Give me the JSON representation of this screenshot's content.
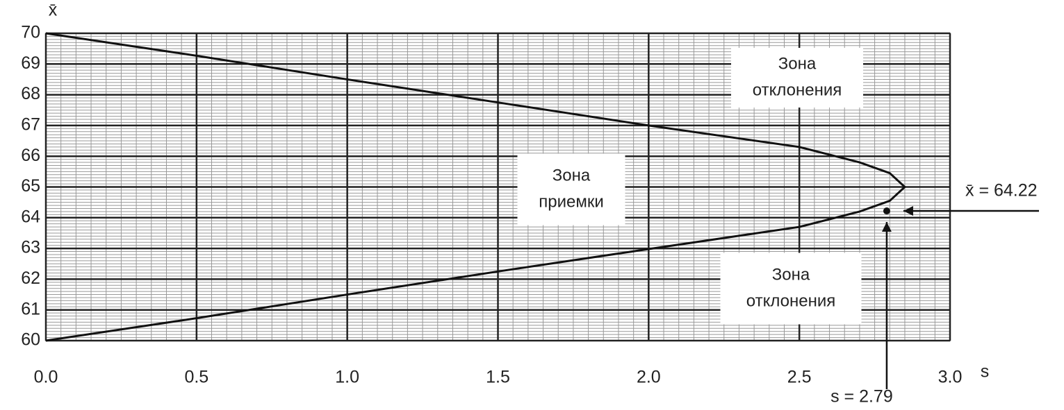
{
  "chart_data": {
    "type": "line",
    "x_label": "s",
    "y_label": "x̄",
    "xlim": [
      0,
      3
    ],
    "ylim": [
      60,
      70
    ],
    "xticks": [
      {
        "value": 0,
        "label": "0.0"
      },
      0.5,
      {
        "value": 1,
        "label": "1.0"
      },
      1.5,
      {
        "value": 2,
        "label": "2.0"
      },
      2.5,
      {
        "value": 3,
        "label": "3.0"
      }
    ],
    "yticks": [
      60,
      61,
      62,
      63,
      64,
      65,
      66,
      67,
      68,
      69,
      70
    ],
    "grid": true,
    "series": [
      {
        "type": "line",
        "color": "#111111",
        "x": [
          0,
          0.5,
          1.0,
          1.5,
          2.0,
          2.5,
          2.7,
          2.8,
          2.85,
          2.8,
          2.7,
          2.5,
          2.0,
          1.5,
          1.0,
          0.5,
          0
        ],
        "values": [
          70,
          69.27,
          68.5,
          67.75,
          67.0,
          66.3,
          65.8,
          65.45,
          65.0,
          64.55,
          64.2,
          63.7,
          62.98,
          62.25,
          61.5,
          60.73,
          60
        ]
      },
      {
        "type": "scatter",
        "color": "#111111",
        "x": [
          2.79
        ],
        "values": [
          64.22
        ]
      }
    ],
    "annotations": [
      {
        "text": [
          "Зона",
          "отклонения"
        ]
      },
      {
        "text": [
          "Зона",
          "приемки"
        ]
      },
      {
        "text": [
          "Зона",
          "отклонения"
        ]
      },
      {
        "text": "x̄ = 64.22"
      },
      {
        "text": "s = 2.79"
      }
    ]
  }
}
